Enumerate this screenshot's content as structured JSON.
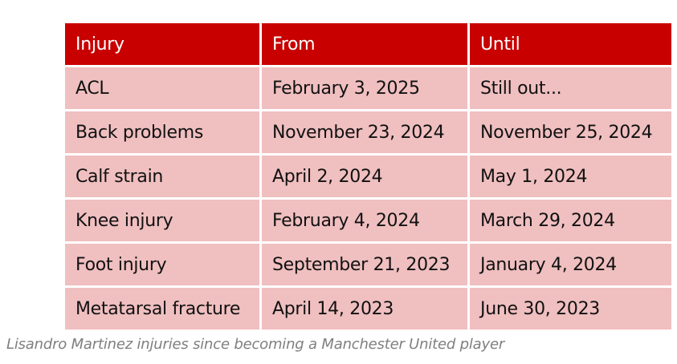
{
  "table": {
    "headers": [
      "Injury",
      "From",
      "Until"
    ],
    "rows": [
      [
        "ACL",
        "February 3, 2025",
        "Still out..."
      ],
      [
        "Back problems",
        "November 23, 2024",
        "November 25, 2024"
      ],
      [
        "Calf strain",
        "April 2, 2024",
        "May 1, 2024"
      ],
      [
        "Knee injury",
        "February 4, 2024",
        "March 29, 2024"
      ],
      [
        "Foot injury",
        "September 21, 2023",
        "January 4, 2024"
      ],
      [
        "Metatarsal fracture",
        "April 14, 2023",
        "June 30, 2023"
      ]
    ]
  },
  "caption": "Lisandro Martinez injuries since becoming a Manchester United player",
  "colors": {
    "header_bg": "#c80000",
    "row_bg": "#f0bfc0",
    "caption": "#7f7f7f"
  }
}
